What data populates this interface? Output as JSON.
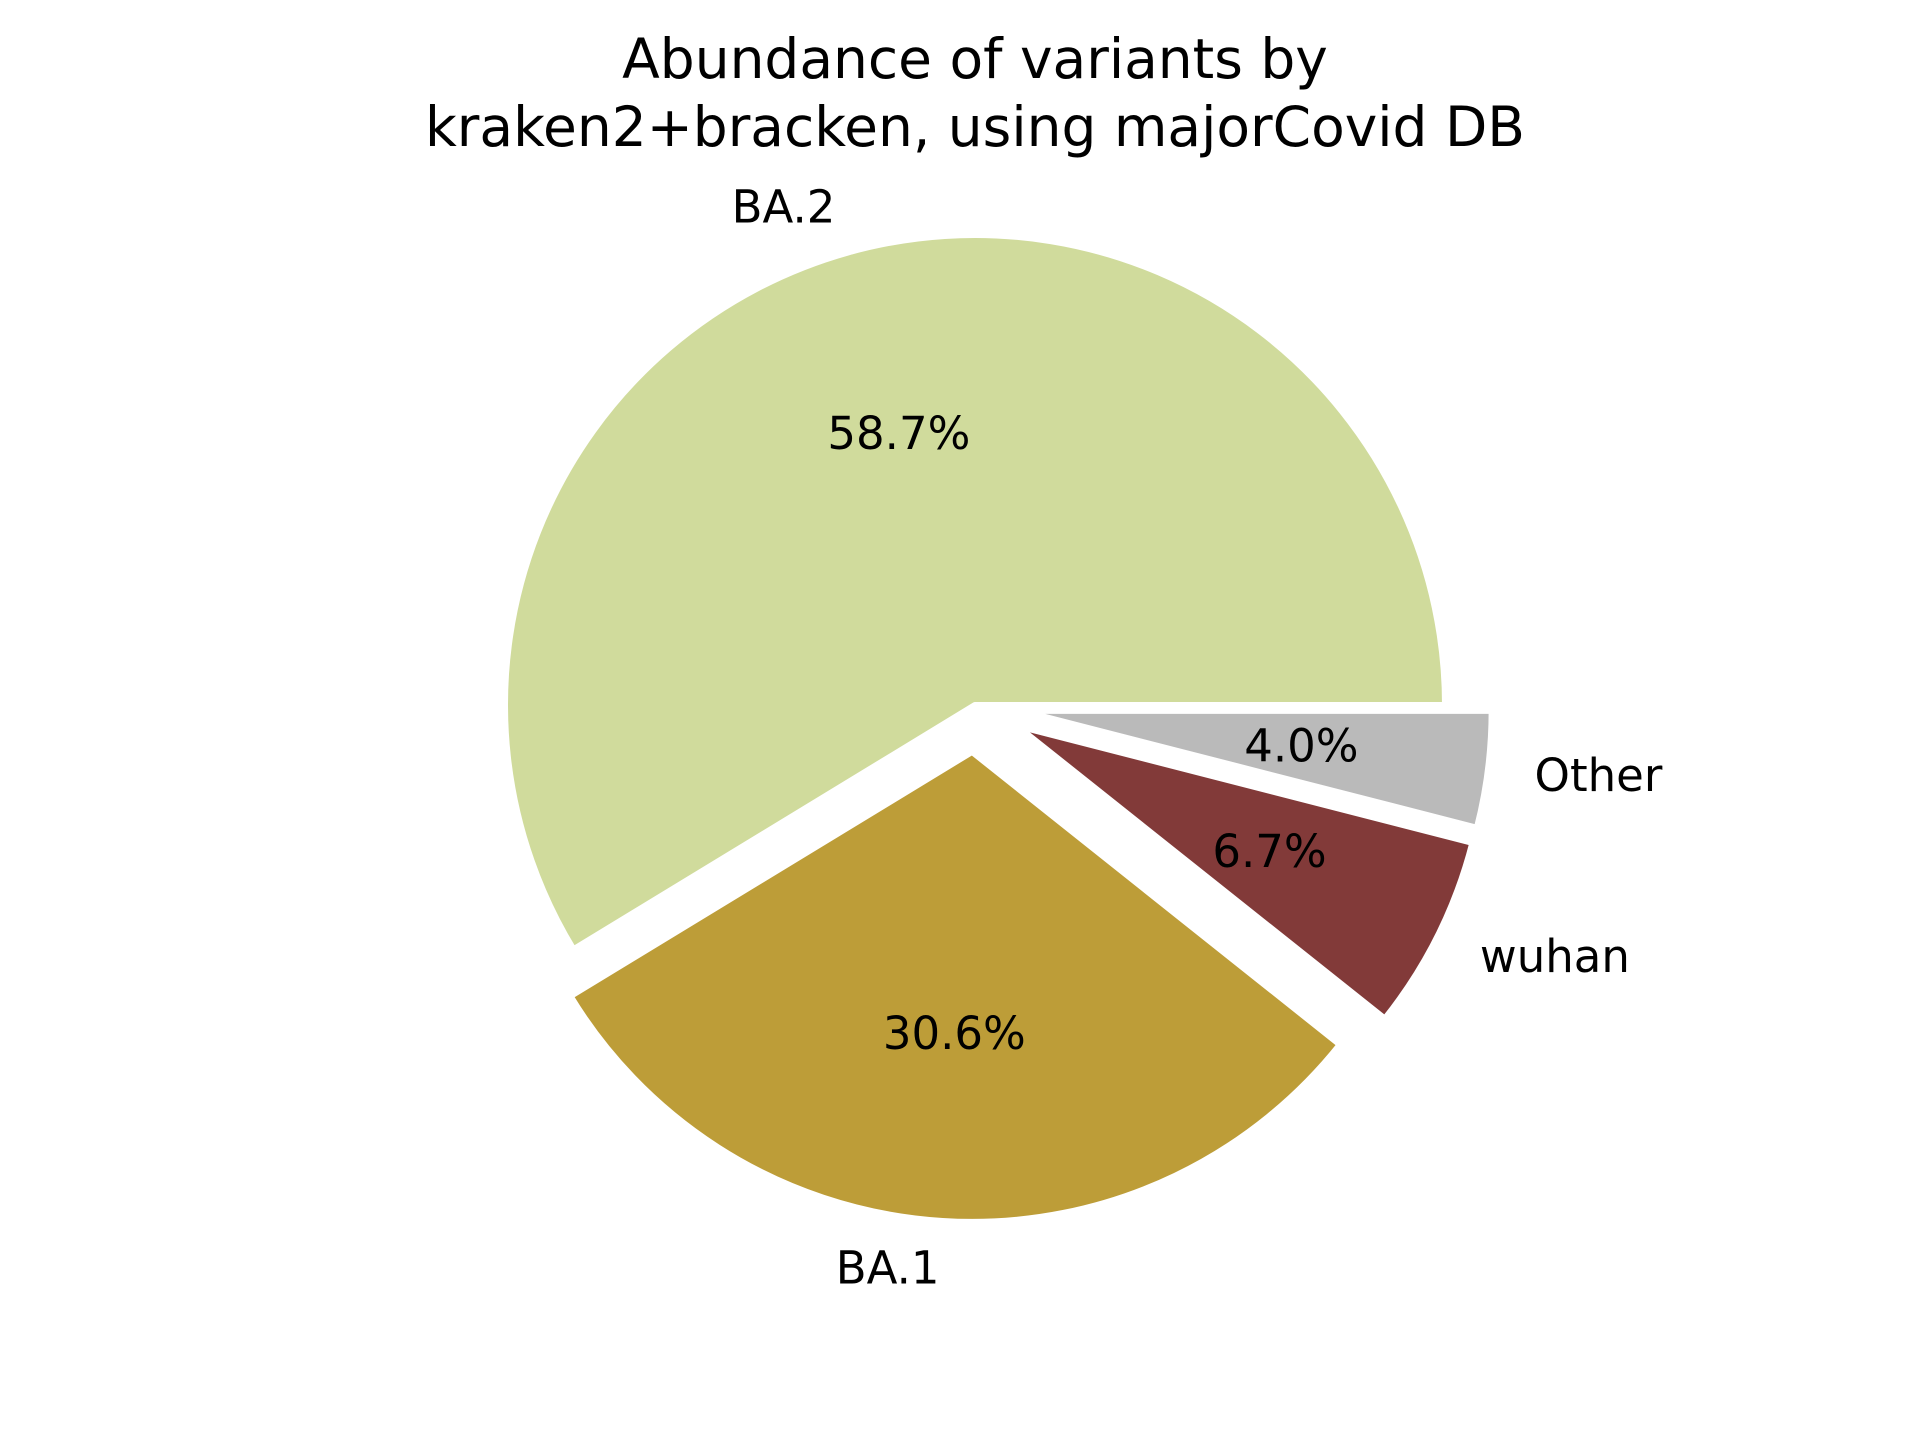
{
  "chart_data": {
    "type": "pie",
    "title": [
      "Abundance of variants by",
      "kraken2+bracken, using majorCovid DB"
    ],
    "slices": [
      {
        "label": "BA.2",
        "value": 58.7,
        "pct_label": "58.7%",
        "color": "#d0db9c",
        "exploded": false
      },
      {
        "label": "BA.1",
        "value": 30.6,
        "pct_label": "30.6%",
        "color": "#bd9d38",
        "exploded": true
      },
      {
        "label": "wuhan",
        "value": 6.7,
        "pct_label": "6.7%",
        "color": "#823a39",
        "exploded": true
      },
      {
        "label": "Other",
        "value": 4.0,
        "pct_label": "4.0%",
        "color": "#bababa",
        "exploded": true
      }
    ],
    "start_angle_deg": 0,
    "direction": "counterclockwise"
  }
}
